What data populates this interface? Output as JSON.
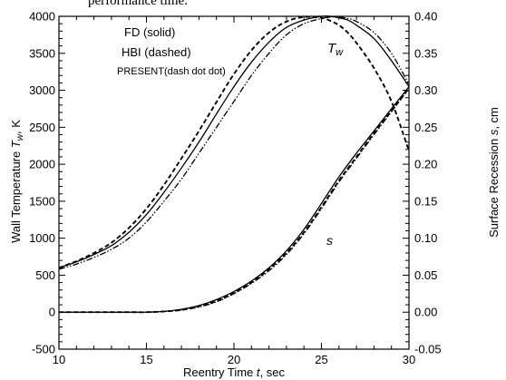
{
  "caption": "performance time.",
  "chart_data": {
    "type": "line",
    "title": "",
    "xlabel": {
      "prefix": "Reentry Time ",
      "var": "t",
      "suffix": ", sec"
    },
    "ylabel_left": {
      "prefix": "Wall Temperature ",
      "var": "T",
      "sub": "w",
      "suffix": ", K"
    },
    "ylabel_right": {
      "prefix": "Surface Recession ",
      "var": "s",
      "suffix": ", cm"
    },
    "xlim": [
      10,
      30
    ],
    "ylim_left": [
      -500,
      4000
    ],
    "ylim_right": [
      -0.05,
      0.4
    ],
    "xticks": [
      "10",
      "15",
      "20",
      "25",
      "30"
    ],
    "yticks_left": [
      "-500",
      "0",
      "500",
      "1000",
      "1500",
      "2000",
      "2500",
      "3000",
      "3500",
      "4000"
    ],
    "yticks_right": [
      "-0.05",
      "0.00",
      "0.05",
      "0.10",
      "0.15",
      "0.20",
      "0.25",
      "0.30",
      "0.35",
      "0.40"
    ],
    "grid": false,
    "legend": {
      "position": "top-left",
      "entries": [
        "FD (solid)",
        "HBI (dashed)",
        "PRESENT(dash dot dot)"
      ]
    },
    "annotations": [
      {
        "text": "T",
        "sub": "w",
        "x": 25.0,
        "y": 3700
      },
      {
        "text": "s",
        "x": 25.1,
        "y": 800
      }
    ],
    "series": [
      {
        "name": "FD (solid)",
        "axis": "left",
        "style": "solid",
        "x": [
          10,
          11,
          12,
          13,
          14,
          15,
          16,
          17,
          18,
          19,
          20,
          21,
          22,
          23,
          24,
          25,
          25.5,
          26,
          26.5,
          27,
          28,
          29,
          30
        ],
        "y": [
          600,
          680,
          780,
          900,
          1080,
          1320,
          1620,
          1950,
          2300,
          2680,
          3050,
          3380,
          3650,
          3850,
          3950,
          4000,
          4000,
          3980,
          3950,
          3880,
          3700,
          3400,
          3050
        ]
      },
      {
        "name": "HBI (dashed)",
        "axis": "left",
        "style": "dashed",
        "x": [
          10,
          11,
          12,
          13,
          14,
          15,
          16,
          17,
          18,
          19,
          20,
          21,
          22,
          23,
          24,
          25,
          25.5,
          26,
          26.5,
          27,
          28,
          29,
          30
        ],
        "y": [
          600,
          690,
          800,
          940,
          1140,
          1400,
          1720,
          2080,
          2450,
          2840,
          3220,
          3540,
          3780,
          3930,
          3990,
          3980,
          3940,
          3880,
          3780,
          3640,
          3300,
          2850,
          2180
        ]
      },
      {
        "name": "PRESENT(dash dot dot)",
        "axis": "left",
        "style": "dashdotdot",
        "x": [
          10,
          11,
          12,
          13,
          14,
          15,
          16,
          17,
          18,
          19,
          20,
          21,
          22,
          23,
          24,
          25,
          25.5,
          26,
          26.5,
          27,
          28,
          29,
          30
        ],
        "y": [
          580,
          650,
          740,
          850,
          1000,
          1220,
          1500,
          1800,
          2150,
          2500,
          2850,
          3200,
          3500,
          3750,
          3900,
          3970,
          3990,
          3990,
          3970,
          3930,
          3780,
          3500,
          3080
        ]
      },
      {
        "name": "FD s (solid)",
        "axis": "right",
        "style": "solid",
        "x": [
          10,
          12,
          14,
          15,
          16,
          17,
          18,
          19,
          20,
          21,
          22,
          23,
          24,
          25,
          26,
          27,
          28,
          29,
          30
        ],
        "y": [
          0,
          0,
          0,
          0,
          0.001,
          0.004,
          0.009,
          0.017,
          0.028,
          0.042,
          0.06,
          0.083,
          0.112,
          0.147,
          0.183,
          0.215,
          0.245,
          0.275,
          0.305
        ]
      },
      {
        "name": "HBI s (dashed)",
        "axis": "right",
        "style": "dashed",
        "x": [
          10,
          12,
          14,
          15,
          16,
          17,
          18,
          19,
          20,
          21,
          22,
          23,
          24,
          25,
          26,
          27,
          28,
          29,
          30
        ],
        "y": [
          0,
          0,
          0,
          0,
          0.001,
          0.003,
          0.008,
          0.015,
          0.026,
          0.04,
          0.058,
          0.08,
          0.108,
          0.142,
          0.178,
          0.21,
          0.242,
          0.272,
          0.303
        ]
      },
      {
        "name": "PRESENT s (dash dot dot)",
        "axis": "right",
        "style": "dashdotdot",
        "x": [
          10,
          12,
          14,
          15,
          16,
          17,
          18,
          19,
          20,
          21,
          22,
          23,
          24,
          25,
          26,
          27,
          28,
          29,
          30
        ],
        "y": [
          0,
          0,
          0,
          0,
          0.001,
          0.003,
          0.007,
          0.014,
          0.025,
          0.039,
          0.056,
          0.078,
          0.106,
          0.14,
          0.176,
          0.208,
          0.24,
          0.271,
          0.302
        ]
      }
    ]
  }
}
